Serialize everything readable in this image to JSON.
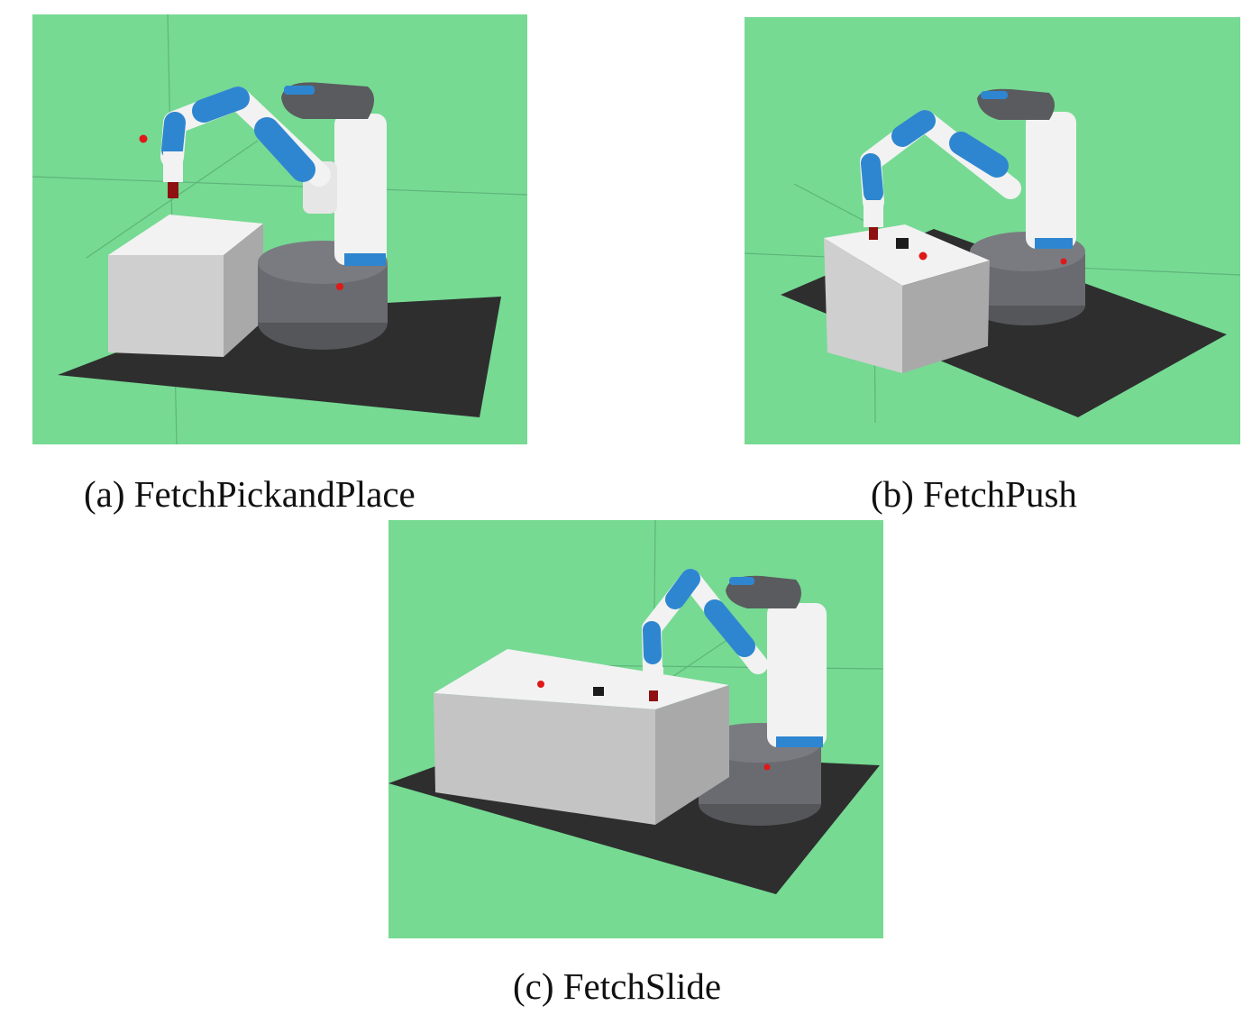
{
  "figure": {
    "panels": [
      {
        "id": "a",
        "caption": "(a) FetchPickandPlace",
        "scene": "fetch-robot-pick-and-place"
      },
      {
        "id": "b",
        "caption": "(b) FetchPush",
        "scene": "fetch-robot-push"
      },
      {
        "id": "c",
        "caption": "(c) FetchSlide",
        "scene": "fetch-robot-slide"
      }
    ]
  },
  "colors": {
    "background": "#76da93",
    "floor": "#2e2e2e",
    "table": "#d4d4d4",
    "robot_white": "#f2f2f2",
    "robot_blue": "#2f86d0",
    "robot_gray": "#5a5b5f",
    "target": "#e01818"
  }
}
